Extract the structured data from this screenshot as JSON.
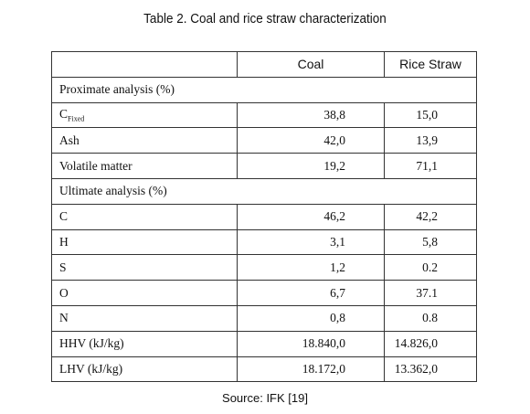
{
  "title": "Table 2. Coal and rice straw characterization",
  "table": {
    "columns": [
      "Coal",
      "Rice Straw"
    ],
    "sections": [
      {
        "heading": "Proximate analysis (%)",
        "rows": [
          {
            "label": "C",
            "subscript": "Fixed",
            "values": [
              "38,8",
              "15,0"
            ]
          },
          {
            "label": "Ash",
            "values": [
              "42,0",
              "13,9"
            ]
          },
          {
            "label": "Volatile matter",
            "values": [
              "19,2",
              "71,1"
            ]
          }
        ]
      },
      {
        "heading": "Ultimate analysis (%)",
        "rows": [
          {
            "label": "C",
            "values": [
              "46,2",
              "42,2"
            ]
          },
          {
            "label": "H",
            "values": [
              "3,1",
              "5,8"
            ]
          },
          {
            "label": "S",
            "values": [
              "1,2",
              "0.2"
            ]
          },
          {
            "label": "O",
            "values": [
              "6,7",
              "37.1"
            ]
          },
          {
            "label": "N",
            "values": [
              "0,8",
              "0.8"
            ]
          },
          {
            "label": "HHV (kJ/kg)",
            "values": [
              "18.840,0",
              "14.826,0"
            ]
          },
          {
            "label": "LHV (kJ/kg)",
            "values": [
              "18.172,0",
              "13.362,0"
            ]
          }
        ]
      }
    ]
  },
  "source": "Source: IFK [19]"
}
